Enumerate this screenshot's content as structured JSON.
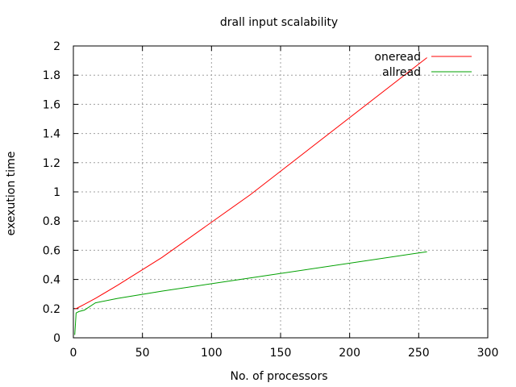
{
  "chart_data": {
    "type": "line",
    "title": "drall input scalability",
    "xlabel": "No. of processors",
    "ylabel": "exexution time",
    "xlim": [
      0,
      300
    ],
    "ylim": [
      0,
      2
    ],
    "xticks": [
      0,
      50,
      100,
      150,
      200,
      250,
      300
    ],
    "yticks": [
      0,
      0.2,
      0.4,
      0.6,
      0.8,
      1,
      1.2,
      1.4,
      1.6,
      1.8,
      2
    ],
    "grid": true,
    "legend_position": "top-right",
    "series": [
      {
        "name": "oneread",
        "color": "#ff0000",
        "x": [
          1,
          2,
          4,
          8,
          16,
          32,
          64,
          128,
          256
        ],
        "y": [
          0.2,
          0.2,
          0.21,
          0.23,
          0.27,
          0.36,
          0.55,
          0.98,
          1.92
        ]
      },
      {
        "name": "allread",
        "color": "#00a000",
        "x": [
          1,
          2,
          4,
          8,
          16,
          32,
          64,
          128,
          256
        ],
        "y": [
          0.02,
          0.17,
          0.18,
          0.19,
          0.24,
          0.27,
          0.32,
          0.41,
          0.59
        ]
      }
    ]
  }
}
